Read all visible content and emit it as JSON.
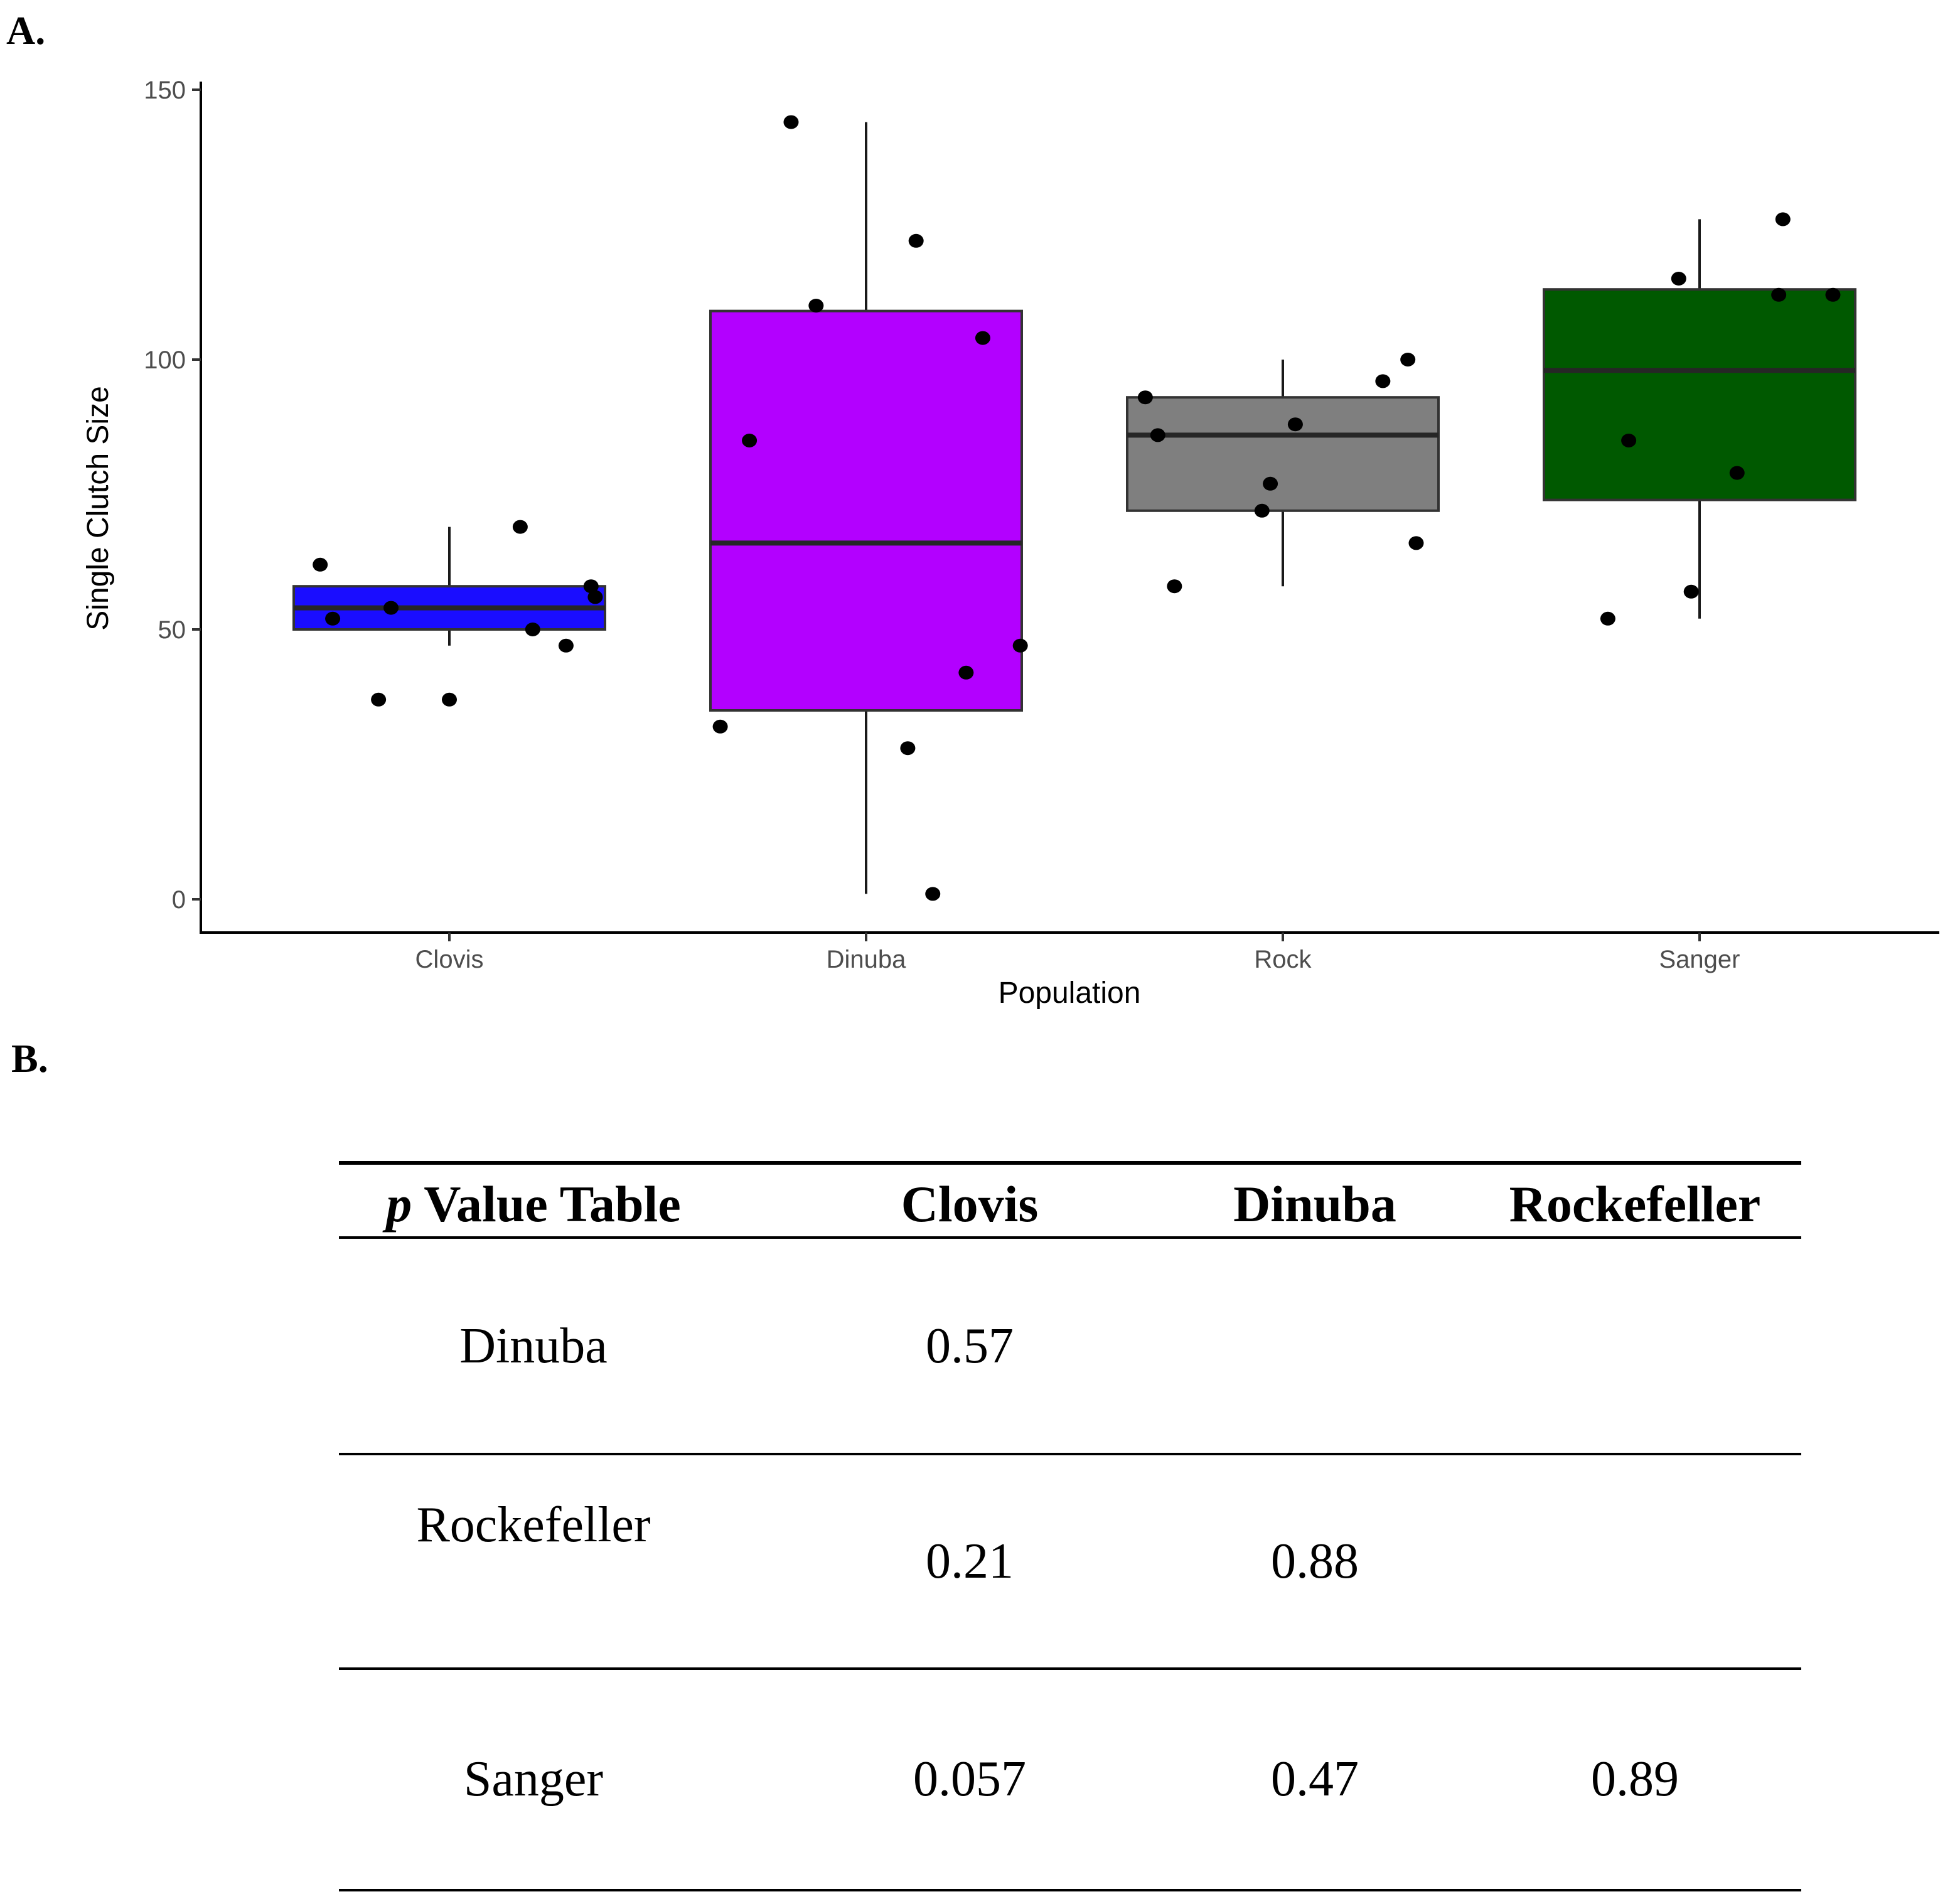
{
  "panels": {
    "a_label": "A.",
    "b_label": "B."
  },
  "chart_data": {
    "type": "box",
    "xlabel": "Population",
    "ylabel": "Single Clutch Size",
    "ylim": [
      -6,
      150
    ],
    "yticks": [
      0,
      50,
      100,
      150
    ],
    "categories": [
      "Clovis",
      "Dinuba",
      "Rock",
      "Sanger"
    ],
    "colors": [
      "#1a0dff",
      "#b300ff",
      "#7f7f7f",
      "#005900"
    ],
    "grid": false,
    "boxes": [
      {
        "category": "Clovis",
        "whisker_low": 47,
        "q1": 50,
        "median": 54,
        "q3": 58,
        "whisker_high": 69,
        "points": [
          {
            "x": 0.69,
            "y": 62
          },
          {
            "x": 0.72,
            "y": 52
          },
          {
            "x": 0.83,
            "y": 37
          },
          {
            "x": 0.86,
            "y": 54
          },
          {
            "x": 1.0,
            "y": 37
          },
          {
            "x": 1.17,
            "y": 69
          },
          {
            "x": 1.2,
            "y": 50
          },
          {
            "x": 1.28,
            "y": 47
          },
          {
            "x": 1.34,
            "y": 58
          },
          {
            "x": 1.35,
            "y": 56
          }
        ]
      },
      {
        "category": "Dinuba",
        "whisker_low": 1,
        "q1": 35,
        "median": 66,
        "q3": 109,
        "whisker_high": 144,
        "points": [
          {
            "x": 1.65,
            "y": 32
          },
          {
            "x": 1.72,
            "y": 85
          },
          {
            "x": 1.82,
            "y": 144
          },
          {
            "x": 1.88,
            "y": 110
          },
          {
            "x": 2.1,
            "y": 28
          },
          {
            "x": 2.12,
            "y": 122
          },
          {
            "x": 2.16,
            "y": 1
          },
          {
            "x": 2.24,
            "y": 42
          },
          {
            "x": 2.28,
            "y": 104
          },
          {
            "x": 2.37,
            "y": 47
          }
        ]
      },
      {
        "category": "Rock",
        "whisker_low": 58,
        "q1": 72,
        "median": 86,
        "q3": 93,
        "whisker_high": 100,
        "points": [
          {
            "x": 2.67,
            "y": 93
          },
          {
            "x": 2.7,
            "y": 86
          },
          {
            "x": 2.74,
            "y": 58
          },
          {
            "x": 2.95,
            "y": 72
          },
          {
            "x": 2.97,
            "y": 77
          },
          {
            "x": 3.03,
            "y": 88
          },
          {
            "x": 3.24,
            "y": 96
          },
          {
            "x": 3.3,
            "y": 100
          },
          {
            "x": 3.32,
            "y": 66
          }
        ]
      },
      {
        "category": "Sanger",
        "whisker_low": 52,
        "q1": 74,
        "median": 98,
        "q3": 113,
        "whisker_high": 126,
        "points": [
          {
            "x": 3.78,
            "y": 52
          },
          {
            "x": 3.83,
            "y": 85
          },
          {
            "x": 3.95,
            "y": 115
          },
          {
            "x": 3.98,
            "y": 57
          },
          {
            "x": 4.09,
            "y": 79
          },
          {
            "x": 4.19,
            "y": 112
          },
          {
            "x": 4.2,
            "y": 126
          },
          {
            "x": 4.32,
            "y": 112
          }
        ]
      }
    ]
  },
  "table": {
    "header_p": "p",
    "header_rest": " Value Table",
    "columns": [
      "Clovis",
      "Dinuba",
      "Rockefeller"
    ],
    "rows": [
      {
        "label": "Dinuba",
        "values": [
          "0.57",
          "",
          ""
        ]
      },
      {
        "label": "Rockefeller",
        "values": [
          "0.21",
          "0.88",
          ""
        ]
      },
      {
        "label": "Sanger",
        "values": [
          "0.057",
          "0.47",
          "0.89"
        ]
      }
    ]
  }
}
